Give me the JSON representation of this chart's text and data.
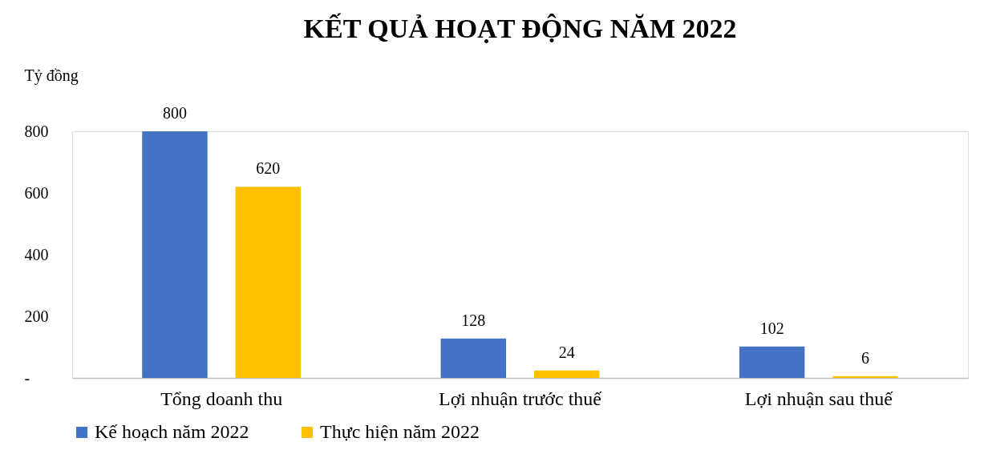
{
  "chart_data": {
    "type": "bar",
    "title": "KẾT QUẢ HOẠT ĐỘNG NĂM 2022",
    "ylabel": "Tỷ đồng",
    "categories": [
      "Tổng doanh thu",
      "Lợi nhuận trước thuế",
      "Lợi nhuận sau thuế"
    ],
    "series": [
      {
        "name": "Kế hoạch năm 2022",
        "color": "#4472c4",
        "values": [
          800,
          128,
          102
        ]
      },
      {
        "name": "Thực hiện năm 2022",
        "color": "#ffc000",
        "values": [
          620,
          24,
          6
        ]
      }
    ],
    "ylim": [
      0,
      800
    ],
    "yticks": [
      {
        "value": 0,
        "label": "-"
      },
      200,
      400,
      600,
      800
    ],
    "grid": false,
    "legend": "bottom",
    "data_labels": true
  }
}
